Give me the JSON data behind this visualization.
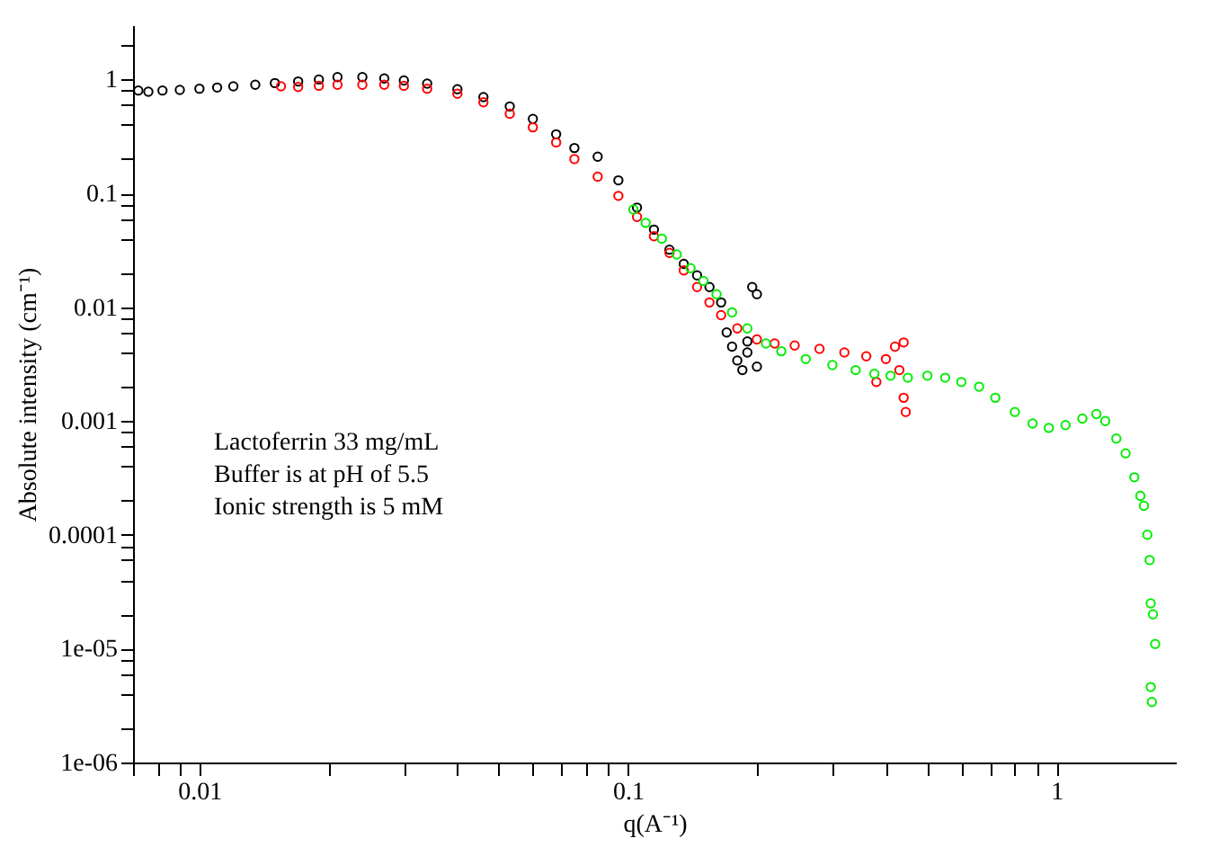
{
  "chart_data": {
    "type": "scatter",
    "xlabel": "q(A⁻¹)",
    "ylabel": "Absolute intensity (cm⁻¹)",
    "log": "xy",
    "grid": false,
    "legend": false,
    "marker": "circle",
    "xlim": [
      0.007,
      1.9
    ],
    "ylim": [
      1e-06,
      3
    ],
    "xticks": [
      {
        "value": 0.007,
        "label": null
      },
      {
        "value": 0.008,
        "label": null
      },
      {
        "value": 0.009,
        "label": null
      },
      0.01,
      {
        "value": 0.02,
        "label": null
      },
      {
        "value": 0.03,
        "label": null
      },
      {
        "value": 0.04,
        "label": null
      },
      {
        "value": 0.05,
        "label": null
      },
      {
        "value": 0.06,
        "label": null
      },
      {
        "value": 0.07,
        "label": null
      },
      {
        "value": 0.08,
        "label": null
      },
      {
        "value": 0.09,
        "label": null
      },
      0.1,
      {
        "value": 0.2,
        "label": null
      },
      {
        "value": 0.3,
        "label": null
      },
      {
        "value": 0.4,
        "label": null
      },
      {
        "value": 0.5,
        "label": null
      },
      {
        "value": 0.6,
        "label": null
      },
      {
        "value": 0.7,
        "label": null
      },
      {
        "value": 0.8,
        "label": null
      },
      {
        "value": 0.9,
        "label": null
      },
      1
    ],
    "yticks": [
      {
        "value": 1e-06,
        "label": "1e-06"
      },
      {
        "value": 2e-06,
        "label": null
      },
      {
        "value": 4e-06,
        "label": null
      },
      {
        "value": 6e-06,
        "label": null
      },
      {
        "value": 8e-06,
        "label": null
      },
      {
        "value": 1e-05,
        "label": "1e-05"
      },
      {
        "value": 2e-05,
        "label": null
      },
      {
        "value": 4e-05,
        "label": null
      },
      {
        "value": 6e-05,
        "label": null
      },
      {
        "value": 8e-05,
        "label": null
      },
      0.0001,
      {
        "value": 0.0002,
        "label": null
      },
      {
        "value": 0.0004,
        "label": null
      },
      {
        "value": 0.0006,
        "label": null
      },
      {
        "value": 0.0008,
        "label": null
      },
      0.001,
      {
        "value": 0.002,
        "label": null
      },
      {
        "value": 0.004,
        "label": null
      },
      {
        "value": 0.006,
        "label": null
      },
      {
        "value": 0.008,
        "label": null
      },
      0.01,
      {
        "value": 0.02,
        "label": null
      },
      {
        "value": 0.04,
        "label": null
      },
      {
        "value": 0.06,
        "label": null
      },
      {
        "value": 0.08,
        "label": null
      },
      0.1,
      {
        "value": 0.2,
        "label": null
      },
      {
        "value": 0.4,
        "label": null
      },
      {
        "value": 0.6,
        "label": null
      },
      {
        "value": 0.8,
        "label": null
      },
      1,
      {
        "value": 2,
        "label": null
      }
    ],
    "annotations": [
      "Lactoferrin 33 mg/mL",
      "Buffer is at pH of 5.5",
      "Ionic strength is 5 mM"
    ],
    "series": [
      {
        "color": "#000000",
        "x": [
          0.0072,
          0.0076,
          0.0082,
          0.009,
          0.01,
          0.011,
          0.012,
          0.0135,
          0.015,
          0.017,
          0.019,
          0.021,
          0.024,
          0.027,
          0.03,
          0.034,
          0.04,
          0.046,
          0.053,
          0.06,
          0.068,
          0.075,
          0.085,
          0.095,
          0.105,
          0.115,
          0.125,
          0.135,
          0.145,
          0.155,
          0.165,
          0.17,
          0.175,
          0.18,
          0.185,
          0.19,
          0.195,
          0.2,
          0.19,
          0.2
        ],
        "values": [
          0.8,
          0.78,
          0.8,
          0.81,
          0.83,
          0.85,
          0.87,
          0.9,
          0.93,
          0.96,
          1.0,
          1.05,
          1.05,
          1.02,
          0.98,
          0.92,
          0.82,
          0.7,
          0.58,
          0.45,
          0.33,
          0.25,
          0.21,
          0.13,
          0.075,
          0.048,
          0.032,
          0.024,
          0.019,
          0.015,
          0.011,
          0.006,
          0.0045,
          0.0034,
          0.0028,
          0.005,
          0.015,
          0.013,
          0.004,
          0.003
        ]
      },
      {
        "color": "#ff0000",
        "x": [
          0.0155,
          0.017,
          0.019,
          0.021,
          0.024,
          0.027,
          0.03,
          0.034,
          0.04,
          0.046,
          0.053,
          0.06,
          0.068,
          0.075,
          0.085,
          0.095,
          0.105,
          0.115,
          0.125,
          0.135,
          0.145,
          0.155,
          0.165,
          0.18,
          0.2,
          0.22,
          0.245,
          0.28,
          0.32,
          0.36,
          0.4,
          0.42,
          0.44,
          0.43,
          0.44,
          0.445,
          0.38
        ],
        "values": [
          0.87,
          0.86,
          0.88,
          0.9,
          0.9,
          0.9,
          0.88,
          0.83,
          0.75,
          0.63,
          0.5,
          0.38,
          0.28,
          0.2,
          0.14,
          0.095,
          0.062,
          0.042,
          0.03,
          0.021,
          0.015,
          0.011,
          0.0085,
          0.0065,
          0.0052,
          0.0048,
          0.0046,
          0.0043,
          0.004,
          0.0037,
          0.0035,
          0.0045,
          0.0049,
          0.0028,
          0.0016,
          0.0012,
          0.0022
        ]
      },
      {
        "color": "#00ee00",
        "x": [
          0.103,
          0.11,
          0.12,
          0.13,
          0.14,
          0.15,
          0.161,
          0.175,
          0.19,
          0.21,
          0.228,
          0.26,
          0.3,
          0.34,
          0.376,
          0.41,
          0.45,
          0.5,
          0.55,
          0.6,
          0.66,
          0.72,
          0.8,
          0.88,
          0.96,
          1.05,
          1.15,
          1.24,
          1.3,
          1.38,
          1.45,
          1.52,
          1.57,
          1.6,
          1.63,
          1.65,
          1.66,
          1.68,
          1.7,
          1.66,
          1.67
        ],
        "values": [
          0.072,
          0.055,
          0.04,
          0.029,
          0.022,
          0.017,
          0.013,
          0.009,
          0.0065,
          0.0048,
          0.0041,
          0.0035,
          0.0031,
          0.0028,
          0.0026,
          0.0025,
          0.0024,
          0.0025,
          0.0024,
          0.0022,
          0.002,
          0.0016,
          0.0012,
          0.00095,
          0.00087,
          0.00092,
          0.00105,
          0.00115,
          0.001,
          0.0007,
          0.00052,
          0.00032,
          0.00022,
          0.00018,
          0.0001,
          6e-05,
          2.5e-05,
          2e-05,
          1.1e-05,
          4.6e-06,
          3.4e-06
        ]
      }
    ]
  }
}
